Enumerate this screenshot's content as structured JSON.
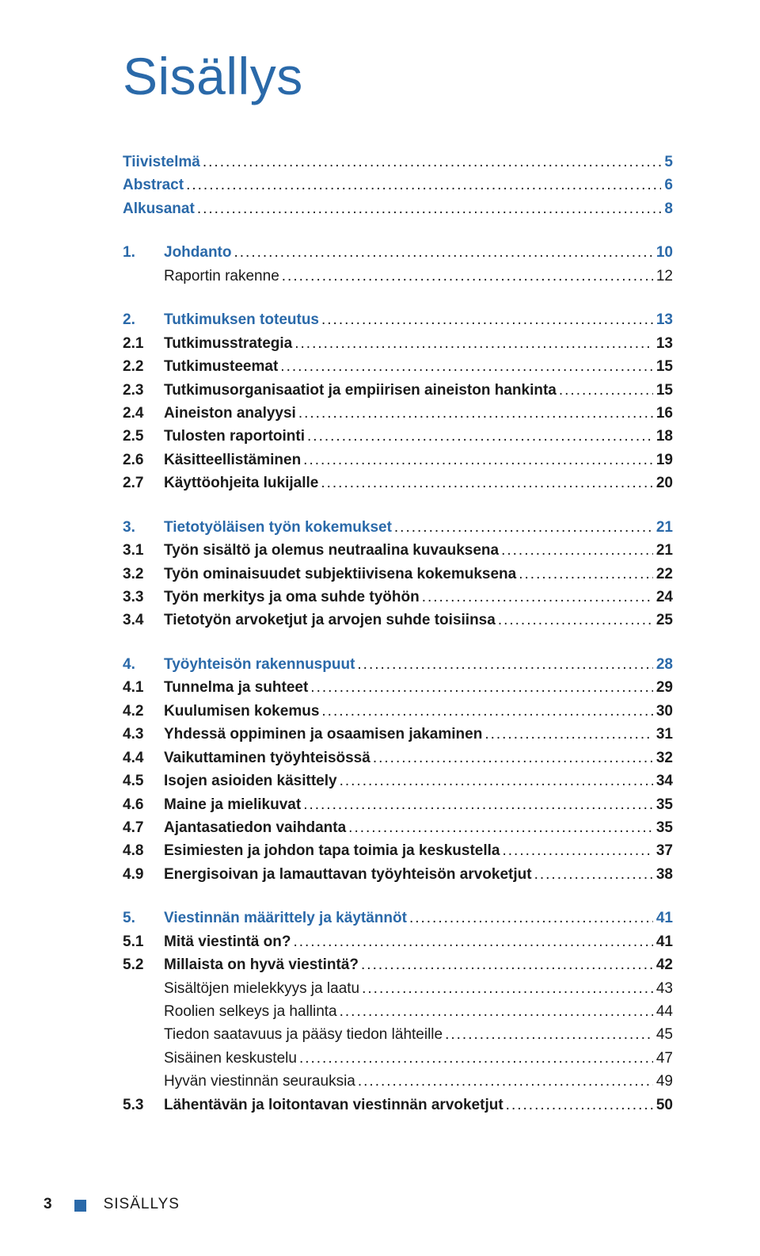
{
  "colors": {
    "accent": "#2a69a9",
    "text": "#1a1a1a",
    "bg": "#ffffff"
  },
  "title": "Sisällys",
  "toc": [
    {
      "level": "h2",
      "num": "",
      "label": "Tiivistelmä",
      "page": "5"
    },
    {
      "level": "h2",
      "num": "",
      "label": "Abstract",
      "page": "6"
    },
    {
      "level": "h2",
      "num": "",
      "label": "Alkusanat",
      "page": "8"
    },
    {
      "level": "h2sec",
      "num": "1.",
      "label": "Johdanto",
      "page": "10"
    },
    {
      "level": "plain",
      "num": "",
      "label": "Raportin rakenne",
      "page": "12"
    },
    {
      "level": "h2sec",
      "num": "2.",
      "label": "Tutkimuksen toteutus",
      "page": "13"
    },
    {
      "level": "h3",
      "num": "2.1",
      "label": "Tutkimusstrategia",
      "page": "13"
    },
    {
      "level": "h3",
      "num": "2.2",
      "label": "Tutkimusteemat",
      "page": "15"
    },
    {
      "level": "h3",
      "num": "2.3",
      "label": "Tutkimusorganisaatiot ja empiirisen aineiston hankinta",
      "page": "15"
    },
    {
      "level": "h3",
      "num": "2.4",
      "label": "Aineiston analyysi",
      "page": "16"
    },
    {
      "level": "h3",
      "num": "2.5",
      "label": "Tulosten raportointi",
      "page": "18"
    },
    {
      "level": "h3",
      "num": "2.6",
      "label": "Käsitteellistäminen",
      "page": "19"
    },
    {
      "level": "h3",
      "num": "2.7",
      "label": "Käyttöohjeita lukijalle",
      "page": "20"
    },
    {
      "level": "h2sec",
      "num": "3.",
      "label": "Tietotyöläisen työn kokemukset",
      "page": "21"
    },
    {
      "level": "h3",
      "num": "3.1",
      "label": "Työn sisältö ja olemus neutraalina kuvauksena",
      "page": "21"
    },
    {
      "level": "h3",
      "num": "3.2",
      "label": "Työn ominaisuudet subjektiivisena kokemuksena",
      "page": "22"
    },
    {
      "level": "h3",
      "num": "3.3",
      "label": "Työn merkitys ja oma suhde työhön",
      "page": "24"
    },
    {
      "level": "h3",
      "num": "3.4",
      "label": "Tietotyön arvoketjut ja arvojen suhde toisiinsa",
      "page": "25"
    },
    {
      "level": "h2sec",
      "num": "4.",
      "label": "Työyhteisön rakennuspuut",
      "page": "28"
    },
    {
      "level": "h3",
      "num": "4.1",
      "label": "Tunnelma ja suhteet",
      "page": "29"
    },
    {
      "level": "h3",
      "num": "4.2",
      "label": "Kuulumisen kokemus",
      "page": "30"
    },
    {
      "level": "h3",
      "num": "4.3",
      "label": "Yhdessä oppiminen ja osaamisen jakaminen",
      "page": "31"
    },
    {
      "level": "h3",
      "num": "4.4",
      "label": "Vaikuttaminen työyhteisössä",
      "page": "32"
    },
    {
      "level": "h3",
      "num": "4.5",
      "label": "Isojen asioiden käsittely",
      "page": "34"
    },
    {
      "level": "h3",
      "num": "4.6",
      "label": "Maine ja mielikuvat",
      "page": "35"
    },
    {
      "level": "h3",
      "num": "4.7",
      "label": "Ajantasatiedon vaihdanta",
      "page": "35"
    },
    {
      "level": "h3",
      "num": "4.8",
      "label": "Esimiesten ja johdon tapa toimia ja keskustella",
      "page": "37"
    },
    {
      "level": "h3",
      "num": "4.9",
      "label": "Energisoivan ja lamauttavan työyhteisön arvoketjut",
      "page": "38"
    },
    {
      "level": "h2sec",
      "num": "5.",
      "label": "Viestinnän määrittely ja käytännöt",
      "page": "41"
    },
    {
      "level": "h3",
      "num": "5.1",
      "label": "Mitä viestintä on?",
      "page": "41"
    },
    {
      "level": "h3",
      "num": "5.2",
      "label": "Millaista on hyvä viestintä?",
      "page": "42"
    },
    {
      "level": "plain-indent",
      "num": "",
      "label": "Sisältöjen mielekkyys ja laatu",
      "page": "43"
    },
    {
      "level": "plain-indent",
      "num": "",
      "label": "Roolien selkeys ja hallinta",
      "page": "44"
    },
    {
      "level": "plain-indent",
      "num": "",
      "label": "Tiedon saatavuus ja pääsy tiedon lähteille",
      "page": "45"
    },
    {
      "level": "plain-indent",
      "num": "",
      "label": "Sisäinen keskustelu",
      "page": "47"
    },
    {
      "level": "plain-indent",
      "num": "",
      "label": "Hyvän viestinnän seurauksia",
      "page": "49"
    },
    {
      "level": "h3",
      "num": "5.3",
      "label": "Lähentävän ja loitontavan viestinnän arvoketjut",
      "page": "50"
    }
  ],
  "footer": {
    "page": "3",
    "section": "SISÄLLYS"
  }
}
